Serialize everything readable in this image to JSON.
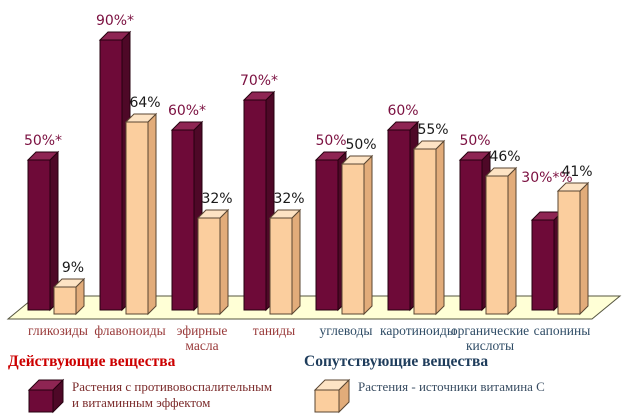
{
  "chart_data": {
    "type": "bar",
    "style": "3d-clustered",
    "title": "",
    "xlabel": "",
    "ylabel": "",
    "ylim": [
      0,
      100
    ],
    "grid": false,
    "axes_visible": false,
    "legend_position": "bottom",
    "categories": [
      "гликозиды",
      "флавоноиды",
      "эфирные масла",
      "таниды",
      "углеводы",
      "каротиноиды",
      "органические кислоты",
      "сапонины"
    ],
    "category_label_lines": [
      [
        "гликозиды"
      ],
      [
        "флавоноиды"
      ],
      [
        "эфирные",
        "масла"
      ],
      [
        "таниды"
      ],
      [
        "углеводы"
      ],
      [
        "каротиноиды"
      ],
      [
        "органические",
        "кислоты"
      ],
      [
        "сапонины"
      ]
    ],
    "category_groups": [
      1,
      1,
      1,
      1,
      2,
      2,
      2,
      2
    ],
    "series": [
      {
        "name": "Растения с противовоспалительным и витаминным эффектом",
        "values": [
          50,
          90,
          60,
          70,
          50,
          60,
          50,
          30
        ],
        "data_labels": [
          "50%*",
          "90%*",
          "60%*",
          "70%*",
          "50%",
          "60%",
          "50%",
          "30%*%"
        ],
        "color": "#6E0A38"
      },
      {
        "name": "Растения - источники витамина С",
        "values": [
          9,
          64,
          32,
          32,
          50,
          55,
          46,
          41
        ],
        "data_labels": [
          "9%",
          "64%",
          "32%",
          "32%",
          "50%",
          "55%",
          "46%",
          "41%"
        ],
        "color": "#FBCE9E"
      }
    ]
  },
  "sections": {
    "left_heading": "Действующие вещества",
    "right_heading": "Сопутствующие вещества"
  },
  "legend": {
    "series1_lines": [
      "Растения с противовоспалительным",
      "и витаминным эффектом"
    ],
    "series2_lines": [
      "Растения - источники витамина С"
    ]
  },
  "colors": {
    "series1_front": "#6E0A38",
    "series1_top": "#8E2553",
    "series1_side": "#4E0827",
    "series1_outline": "#26000F",
    "series2_front": "#FBCE9E",
    "series2_top": "#FDE3C4",
    "series2_side": "#E2AC7A",
    "series2_outline": "#5A4632",
    "floor_fill": "#FFFFD6",
    "floor_edge": "#55553F",
    "label_series1": "#7B1040",
    "label_series2": "#1A1A1A",
    "category_group1": "#993A3A",
    "category_group2": "#2F4C66",
    "heading_left": "#CC0000",
    "heading_right": "#1F3D5C",
    "legend1_text": "#7B2B2B",
    "legend2_text": "#3A4E63"
  }
}
